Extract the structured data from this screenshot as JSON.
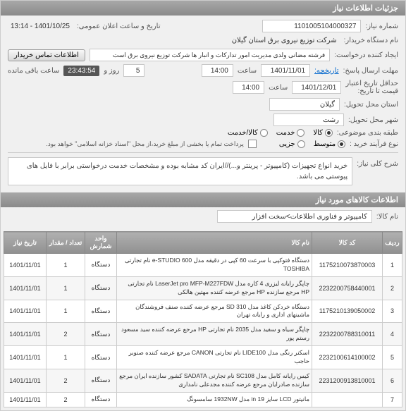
{
  "header": {
    "title": "جزئیات اطلاعات نیاز"
  },
  "form": {
    "req_no_label": "شماره نیاز:",
    "req_no": "1101005104000327",
    "announce_label": "تاریخ و ساعت اعلان عمومی:",
    "announce": "1401/10/25 - 13:14",
    "org_label": "نام دستگاه خریدار:",
    "org": "شرکت توزیع نیروی برق استان گیلان",
    "creator_label": "ایجاد کننده درخواست:",
    "creator": "فرشته مضانی ولدی مدیریت امور تدارکات و انبار ها شرکت توزیع نیروی برق است",
    "contact_btn": "اطلاعات تماس خریدار",
    "deadline_label": "مهلت ارسال پاسخ:",
    "deadline_hist": "تاریخچه:",
    "deadline_date": "1401/11/01",
    "deadline_time_lbl": "ساعت",
    "deadline_time": "14:00",
    "remain_days": "5",
    "remain_days_lbl": "روز و",
    "remain_time": "23:43:54",
    "remain_lbl": "ساعت باقی مانده",
    "valid_min_label": "حداقل تاریخ اعتبار",
    "valid_min_label2": "قیمت تا تاریخ:",
    "valid_date": "1401/12/01",
    "valid_time": "14:00",
    "province_label": "استان محل تحویل:",
    "province": "گیلان",
    "city_label": "شهر محل تحویل:",
    "city": "رشت",
    "cat_label": "طبقه بندی موضوعی:",
    "cat_goods": "کالا",
    "cat_service": "خدمت",
    "cat_both": "کالا/خدمت",
    "proc_label": "نوع فرآیند خرید :",
    "proc_mid": "متوسط",
    "proc_small": "جزیی",
    "proc_note": "پرداخت تمام یا بخشی از مبلغ خرید،از محل \"اسناد خزانه اسلامی\" خواهد بود.",
    "desc_label": "شرح کلی نیاز:",
    "desc": "خرید انواع تجهیزات (کامپیوتر - پرینتر و...)//ایران کد مشابه بوده و مشخصات خدمت درخواستی برابر با فایل های پیوستی می باشد.",
    "goods_header": "اطلاعات کالاهای مورد نیاز",
    "goods_name_label": "نام کالا:",
    "goods_name": "کامپیوتر و فناوری اطلاعات>سخت افزار"
  },
  "table": {
    "headers": {
      "row": "ردیف",
      "code": "کد کالا",
      "name": "نام کالا",
      "unit": "واحد شمارش",
      "qty": "تعداد / مقدار",
      "date": "تاریخ نیاز"
    },
    "rows": [
      {
        "n": "1",
        "code": "1175210073870003",
        "name": "دستگاه فتوکپی با سرعت 60 کپی در دقیقه مدل e-STUDIO 600 نام تجارتی TOSHIBA",
        "unit": "دستگاه",
        "qty": "1",
        "date": "1401/11/01"
      },
      {
        "n": "2",
        "code": "2232200758440001",
        "name": "چاپگر رایانه لیزری 4 کاره مدل LaserJet pro MFP-M227FDW نام تجارتی HP مرجع سازنده HP مرجع عرضه کننده مهتین هالکی",
        "unit": "دستگاه",
        "qty": "1",
        "date": "1401/11/01"
      },
      {
        "n": "3",
        "code": "1175210139050002",
        "name": "دستگاه خردکن کاغذ مدل SD 310 مرجع عرضه کننده صنف فروشندگان ماشینهای اداری و رایانه تهران",
        "unit": "دستگاه",
        "qty": "1",
        "date": "1401/11/01"
      },
      {
        "n": "4",
        "code": "2232200788310011",
        "name": "چاپگر سیاه و سفید مدل 2035 نام تجارتی HP مرجع عرضه کننده سید مسعود رستم پور",
        "unit": "دستگاه",
        "qty": "2",
        "date": "1401/11/01"
      },
      {
        "n": "5",
        "code": "2232100614100002",
        "name": "اسکنر رنگی مدل LIDE100 نام تجارتی CANON مرجع عرضه کننده صنوبر حاجب",
        "unit": "دستگاه",
        "qty": "1",
        "date": "1401/11/01"
      },
      {
        "n": "6",
        "code": "2231200913810001",
        "name": "کیس رایانه کامل مدل SC108 نام تجارتی SADATA کشور سازنده ایران مرجع سازنده صادرایان مرجع عرضه کننده مجدعلی نامداری",
        "unit": "دستگاه",
        "qty": "2",
        "date": "1401/11/01"
      },
      {
        "n": "7",
        "code": "",
        "name": "مانیتور LCD سایز 19 in مدل 1932NW سامسونگ",
        "unit": "دستگاه",
        "qty": "2",
        "date": "1401/11/01"
      }
    ]
  }
}
